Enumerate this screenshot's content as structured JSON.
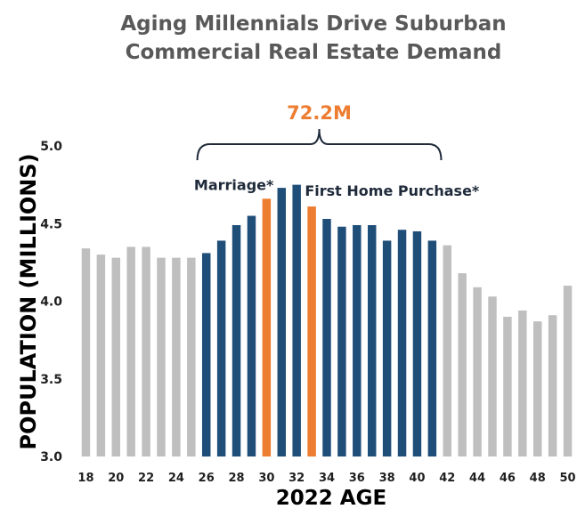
{
  "colors": {
    "gray": "#bfbfbf",
    "blue": "#1f4e79",
    "orange": "#ed7d31",
    "title": "#595959",
    "text": "#1f1f1f"
  },
  "chart_data": {
    "type": "bar",
    "title_line1": "Aging Millennials Drive Suburban",
    "title_line2": "Commercial Real Estate Demand",
    "xlabel": "2022 AGE",
    "ylabel": "POPULATION (MILLIONS)",
    "ylim": [
      3.0,
      5.0
    ],
    "yticks": [
      "3.0",
      "3.5",
      "4.0",
      "4.5",
      "5.0"
    ],
    "grid": false,
    "categories": [
      "18",
      "19",
      "20",
      "21",
      "22",
      "23",
      "24",
      "25",
      "26",
      "27",
      "28",
      "29",
      "30",
      "31",
      "32",
      "33",
      "34",
      "35",
      "36",
      "37",
      "38",
      "39",
      "40",
      "41",
      "42",
      "43",
      "44",
      "45",
      "46",
      "47",
      "48",
      "49",
      "50"
    ],
    "xtick_labels": [
      "18",
      "20",
      "22",
      "24",
      "26",
      "28",
      "30",
      "32",
      "34",
      "36",
      "38",
      "40",
      "42",
      "44",
      "46",
      "48",
      "50"
    ],
    "values": [
      4.34,
      4.3,
      4.28,
      4.35,
      4.35,
      4.28,
      4.28,
      4.28,
      4.31,
      4.39,
      4.49,
      4.55,
      4.66,
      4.73,
      4.75,
      4.61,
      4.53,
      4.48,
      4.49,
      4.49,
      4.39,
      4.46,
      4.45,
      4.39,
      4.36,
      4.18,
      4.09,
      4.03,
      3.9,
      3.94,
      3.87,
      3.91,
      4.1
    ],
    "bar_colors": [
      "gray",
      "gray",
      "gray",
      "gray",
      "gray",
      "gray",
      "gray",
      "gray",
      "blue",
      "blue",
      "blue",
      "blue",
      "orange",
      "blue",
      "blue",
      "orange",
      "blue",
      "blue",
      "blue",
      "blue",
      "blue",
      "blue",
      "blue",
      "blue",
      "gray",
      "gray",
      "gray",
      "gray",
      "gray",
      "gray",
      "gray",
      "gray",
      "gray"
    ],
    "annotations": {
      "range_label": "72.2M",
      "range_start_age": "26",
      "range_end_age": "41",
      "marriage_label": "Marriage*",
      "first_home_label": "First Home Purchase*"
    }
  }
}
